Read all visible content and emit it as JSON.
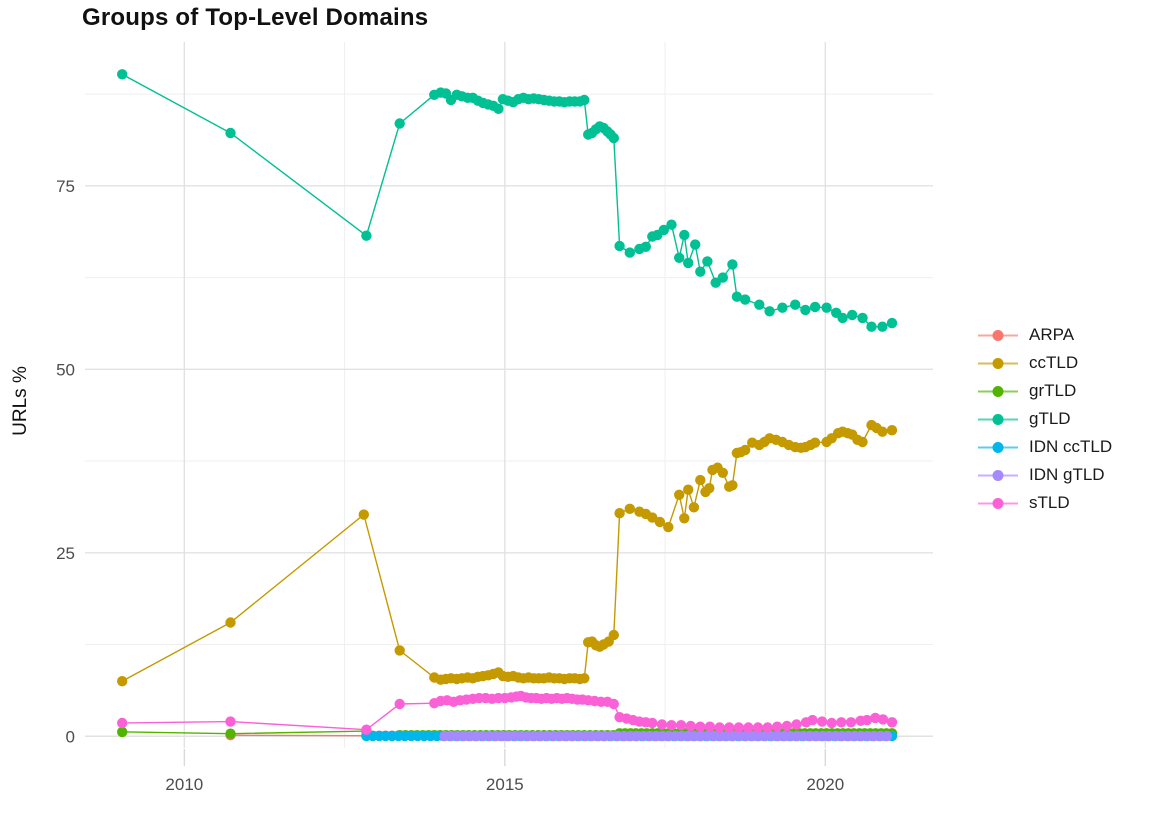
{
  "title": "Groups of Top-Level Domains",
  "chart_data": {
    "type": "line",
    "title": "Groups of Top-Level Domains",
    "xlabel": "",
    "ylabel": "URLs %",
    "grid": true,
    "legend_position": "right",
    "xlim": [
      2008.45,
      2021.68
    ],
    "ylim": [
      -1.6,
      94.6
    ],
    "x_ticks": [
      2010,
      2015,
      2020
    ],
    "x_tick_labels": [
      "2010",
      "2015",
      "2020"
    ],
    "x_minor": [
      2012.5,
      2017.5
    ],
    "y_ticks": [
      0,
      25,
      50,
      75
    ],
    "y_tick_labels": [
      "0",
      "25",
      "50",
      "75"
    ],
    "y_minor": [
      12.5,
      37.5,
      62.5,
      87.5
    ],
    "series": [
      {
        "name": "ARPA",
        "color": "#F8766D",
        "points": [
          [
            2010.72,
            0.15
          ]
        ],
        "segments": [
          {
            "from": 2012.84,
            "to": 2021.04,
            "step": 0.1,
            "value": 0.08
          }
        ]
      },
      {
        "name": "ccTLD",
        "color": "#C49A00",
        "points": [
          [
            2009.03,
            7.5
          ],
          [
            2010.72,
            15.5
          ],
          [
            2012.8,
            30.2
          ],
          [
            2013.36,
            11.7
          ],
          [
            2013.9,
            8.0
          ],
          [
            2014.0,
            7.7
          ],
          [
            2014.08,
            7.8
          ],
          [
            2014.16,
            7.9
          ],
          [
            2014.25,
            7.8
          ],
          [
            2014.33,
            7.9
          ],
          [
            2014.42,
            8.0
          ],
          [
            2014.5,
            7.9
          ],
          [
            2014.58,
            8.1
          ],
          [
            2014.66,
            8.2
          ],
          [
            2014.74,
            8.3
          ],
          [
            2014.82,
            8.5
          ],
          [
            2014.9,
            8.7
          ],
          [
            2014.97,
            8.2
          ],
          [
            2015.05,
            8.1
          ],
          [
            2015.13,
            8.2
          ],
          [
            2015.21,
            8.0
          ],
          [
            2015.29,
            7.9
          ],
          [
            2015.37,
            8.0
          ],
          [
            2015.45,
            7.9
          ],
          [
            2015.53,
            7.9
          ],
          [
            2015.61,
            7.9
          ],
          [
            2015.69,
            8.0
          ],
          [
            2015.77,
            7.9
          ],
          [
            2015.85,
            7.9
          ],
          [
            2015.93,
            7.8
          ],
          [
            2016.01,
            7.9
          ],
          [
            2016.09,
            7.9
          ],
          [
            2016.17,
            7.8
          ],
          [
            2016.24,
            7.9
          ],
          [
            2016.3,
            12.8
          ],
          [
            2016.36,
            12.9
          ],
          [
            2016.42,
            12.4
          ],
          [
            2016.48,
            12.2
          ],
          [
            2016.54,
            12.5
          ],
          [
            2016.62,
            12.9
          ],
          [
            2016.7,
            13.8
          ],
          [
            2016.79,
            30.4
          ],
          [
            2016.95,
            31.0
          ],
          [
            2017.1,
            30.6
          ],
          [
            2017.2,
            30.3
          ],
          [
            2017.3,
            29.8
          ],
          [
            2017.42,
            29.2
          ],
          [
            2017.55,
            28.5
          ],
          [
            2017.72,
            32.9
          ],
          [
            2017.8,
            29.7
          ],
          [
            2017.86,
            33.6
          ],
          [
            2017.95,
            31.2
          ],
          [
            2018.05,
            34.9
          ],
          [
            2018.13,
            33.3
          ],
          [
            2018.19,
            33.8
          ],
          [
            2018.24,
            36.3
          ],
          [
            2018.32,
            36.6
          ],
          [
            2018.4,
            35.9
          ],
          [
            2018.5,
            34.0
          ],
          [
            2018.55,
            34.2
          ],
          [
            2018.62,
            38.6
          ],
          [
            2018.68,
            38.7
          ],
          [
            2018.75,
            39.0
          ],
          [
            2018.86,
            40.0
          ],
          [
            2018.97,
            39.7
          ],
          [
            2019.05,
            40.1
          ],
          [
            2019.13,
            40.6
          ],
          [
            2019.23,
            40.4
          ],
          [
            2019.33,
            40.1
          ],
          [
            2019.43,
            39.7
          ],
          [
            2019.53,
            39.4
          ],
          [
            2019.62,
            39.3
          ],
          [
            2019.69,
            39.4
          ],
          [
            2019.77,
            39.7
          ],
          [
            2019.84,
            40.0
          ],
          [
            2020.02,
            40.1
          ],
          [
            2020.1,
            40.6
          ],
          [
            2020.2,
            41.3
          ],
          [
            2020.27,
            41.5
          ],
          [
            2020.35,
            41.3
          ],
          [
            2020.42,
            41.1
          ],
          [
            2020.5,
            40.4
          ],
          [
            2020.58,
            40.1
          ],
          [
            2020.72,
            42.4
          ],
          [
            2020.8,
            42.0
          ],
          [
            2020.89,
            41.5
          ],
          [
            2021.04,
            41.7
          ]
        ]
      },
      {
        "name": "grTLD",
        "color": "#53B400",
        "points": [
          [
            2009.03,
            0.6
          ],
          [
            2010.72,
            0.35
          ],
          [
            2012.84,
            0.7
          ]
        ],
        "segments": [
          {
            "from": 2013.36,
            "to": 2016.7,
            "step": 0.09,
            "value": 0.15
          },
          {
            "from": 2016.79,
            "to": 2021.04,
            "step": 0.085,
            "value": 0.4
          }
        ]
      },
      {
        "name": "gTLD",
        "color": "#00C094",
        "points": [
          [
            2009.03,
            90.2
          ],
          [
            2010.72,
            82.2
          ],
          [
            2012.84,
            68.2
          ],
          [
            2013.36,
            83.5
          ],
          [
            2013.9,
            87.4
          ],
          [
            2014.0,
            87.7
          ],
          [
            2014.08,
            87.6
          ],
          [
            2014.16,
            86.7
          ],
          [
            2014.25,
            87.4
          ],
          [
            2014.33,
            87.2
          ],
          [
            2014.42,
            87.0
          ],
          [
            2014.5,
            87.0
          ],
          [
            2014.58,
            86.6
          ],
          [
            2014.66,
            86.3
          ],
          [
            2014.74,
            86.1
          ],
          [
            2014.82,
            85.9
          ],
          [
            2014.9,
            85.5
          ],
          [
            2014.97,
            86.8
          ],
          [
            2015.05,
            86.6
          ],
          [
            2015.13,
            86.4
          ],
          [
            2015.21,
            86.8
          ],
          [
            2015.29,
            87.0
          ],
          [
            2015.37,
            86.8
          ],
          [
            2015.45,
            86.9
          ],
          [
            2015.53,
            86.8
          ],
          [
            2015.61,
            86.7
          ],
          [
            2015.69,
            86.6
          ],
          [
            2015.77,
            86.5
          ],
          [
            2015.85,
            86.5
          ],
          [
            2015.93,
            86.4
          ],
          [
            2016.01,
            86.5
          ],
          [
            2016.09,
            86.5
          ],
          [
            2016.17,
            86.5
          ],
          [
            2016.24,
            86.7
          ],
          [
            2016.3,
            82.0
          ],
          [
            2016.36,
            82.2
          ],
          [
            2016.42,
            82.7
          ],
          [
            2016.48,
            83.1
          ],
          [
            2016.54,
            82.9
          ],
          [
            2016.6,
            82.4
          ],
          [
            2016.65,
            82.0
          ],
          [
            2016.7,
            81.5
          ],
          [
            2016.79,
            66.8
          ],
          [
            2016.95,
            65.9
          ],
          [
            2017.1,
            66.4
          ],
          [
            2017.2,
            66.7
          ],
          [
            2017.3,
            68.1
          ],
          [
            2017.38,
            68.3
          ],
          [
            2017.48,
            69.0
          ],
          [
            2017.6,
            69.7
          ],
          [
            2017.72,
            65.2
          ],
          [
            2017.8,
            68.3
          ],
          [
            2017.86,
            64.5
          ],
          [
            2017.97,
            67.0
          ],
          [
            2018.05,
            63.3
          ],
          [
            2018.16,
            64.7
          ],
          [
            2018.29,
            61.8
          ],
          [
            2018.4,
            62.5
          ],
          [
            2018.55,
            64.3
          ],
          [
            2018.62,
            59.9
          ],
          [
            2018.75,
            59.5
          ],
          [
            2018.97,
            58.8
          ],
          [
            2019.13,
            57.9
          ],
          [
            2019.33,
            58.4
          ],
          [
            2019.53,
            58.8
          ],
          [
            2019.69,
            58.1
          ],
          [
            2019.84,
            58.5
          ],
          [
            2020.02,
            58.4
          ],
          [
            2020.17,
            57.7
          ],
          [
            2020.27,
            57.0
          ],
          [
            2020.42,
            57.4
          ],
          [
            2020.58,
            57.0
          ],
          [
            2020.72,
            55.8
          ],
          [
            2020.89,
            55.8
          ],
          [
            2021.04,
            56.3
          ]
        ]
      },
      {
        "name": "IDN ccTLD",
        "color": "#00B6EB",
        "segments": [
          {
            "from": 2012.84,
            "to": 2021.04,
            "step": 0.1,
            "value": 0.05
          }
        ]
      },
      {
        "name": "IDN gTLD",
        "color": "#A58AFF",
        "segments": [
          {
            "from": 2014.06,
            "to": 2021.04,
            "step": 0.1,
            "value": 0.02
          }
        ]
      },
      {
        "name": "sTLD",
        "color": "#FB61D7",
        "points": [
          [
            2009.03,
            1.8
          ],
          [
            2010.72,
            2.0
          ],
          [
            2012.84,
            0.9
          ],
          [
            2013.36,
            4.4
          ],
          [
            2013.9,
            4.5
          ],
          [
            2014.0,
            4.8
          ],
          [
            2014.1,
            4.9
          ],
          [
            2014.2,
            4.7
          ],
          [
            2014.3,
            4.9
          ],
          [
            2014.4,
            5.0
          ],
          [
            2014.5,
            5.1
          ],
          [
            2014.6,
            5.2
          ],
          [
            2014.7,
            5.2
          ],
          [
            2014.8,
            5.1
          ],
          [
            2014.9,
            5.2
          ],
          [
            2015.0,
            5.2
          ],
          [
            2015.1,
            5.3
          ],
          [
            2015.18,
            5.4
          ],
          [
            2015.25,
            5.5
          ],
          [
            2015.33,
            5.3
          ],
          [
            2015.41,
            5.2
          ],
          [
            2015.49,
            5.2
          ],
          [
            2015.57,
            5.1
          ],
          [
            2015.65,
            5.2
          ],
          [
            2015.73,
            5.1
          ],
          [
            2015.81,
            5.2
          ],
          [
            2015.89,
            5.1
          ],
          [
            2015.97,
            5.2
          ],
          [
            2016.05,
            5.1
          ],
          [
            2016.13,
            5.0
          ],
          [
            2016.21,
            5.0
          ],
          [
            2016.3,
            4.9
          ],
          [
            2016.4,
            4.8
          ],
          [
            2016.5,
            4.7
          ],
          [
            2016.6,
            4.7
          ],
          [
            2016.7,
            4.4
          ],
          [
            2016.79,
            2.6
          ],
          [
            2016.9,
            2.4
          ],
          [
            2017.0,
            2.2
          ],
          [
            2017.1,
            2.0
          ],
          [
            2017.2,
            1.9
          ],
          [
            2017.3,
            1.8
          ],
          [
            2017.45,
            1.6
          ],
          [
            2017.6,
            1.5
          ],
          [
            2017.75,
            1.5
          ],
          [
            2017.9,
            1.4
          ],
          [
            2018.05,
            1.3
          ],
          [
            2018.2,
            1.3
          ],
          [
            2018.35,
            1.2
          ],
          [
            2018.5,
            1.2
          ],
          [
            2018.65,
            1.2
          ],
          [
            2018.8,
            1.2
          ],
          [
            2018.95,
            1.2
          ],
          [
            2019.1,
            1.2
          ],
          [
            2019.25,
            1.3
          ],
          [
            2019.4,
            1.4
          ],
          [
            2019.55,
            1.6
          ],
          [
            2019.7,
            1.9
          ],
          [
            2019.8,
            2.2
          ],
          [
            2019.95,
            2.0
          ],
          [
            2020.1,
            1.8
          ],
          [
            2020.25,
            1.9
          ],
          [
            2020.4,
            1.9
          ],
          [
            2020.55,
            2.1
          ],
          [
            2020.65,
            2.2
          ],
          [
            2020.78,
            2.5
          ],
          [
            2020.9,
            2.3
          ],
          [
            2021.04,
            1.9
          ]
        ]
      }
    ],
    "style": {
      "background": "#ffffff",
      "grid_major_color": "#e2e2e2",
      "grid_minor_color": "#efefef",
      "tick_label_color": "#4d4d4d",
      "axis_tick_color": "#d9d9d9",
      "point_radius": 5.2,
      "line_width": 1.4
    }
  }
}
